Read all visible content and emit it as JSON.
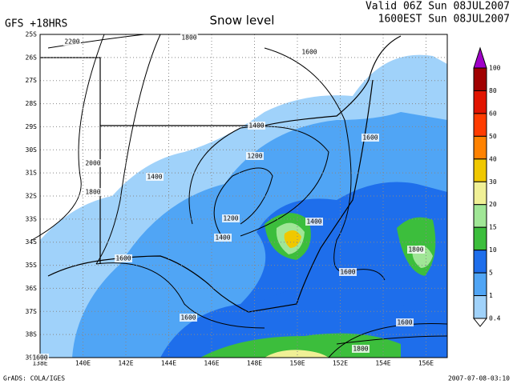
{
  "header": {
    "model": "GFS +18HRS",
    "title": "Snow level",
    "valid": "Valid 06Z Sun 08JUL2007",
    "local": "1600EST Sun 08JUL2007"
  },
  "map": {
    "lat_labels": [
      "25S",
      "26S",
      "27S",
      "28S",
      "29S",
      "30S",
      "31S",
      "32S",
      "33S",
      "34S",
      "35S",
      "36S",
      "37S",
      "38S",
      "39S"
    ],
    "lon_labels": [
      "138E",
      "140E",
      "142E",
      "144E",
      "146E",
      "148E",
      "150E",
      "152E",
      "154E",
      "156E"
    ],
    "contour_labels": [
      "2200",
      "1800",
      "1600",
      "1400",
      "1600",
      "2000",
      "1800",
      "1400",
      "1200",
      "1200",
      "1400",
      "1400",
      "1600",
      "1600",
      "1800",
      "1600",
      "1600",
      "1800",
      "1600"
    ]
  },
  "colorbar": {
    "levels": [
      "100",
      "80",
      "60",
      "50",
      "40",
      "30",
      "20",
      "15",
      "10",
      "5",
      "1",
      "0.4"
    ],
    "colors": [
      "#a000c8",
      "#a00000",
      "#e11400",
      "#ff3c00",
      "#ff8200",
      "#f0c800",
      "#f0f096",
      "#a0e696",
      "#3cbe3c",
      "#1e6eeb",
      "#50a5f5",
      "#a0d2fa",
      "#ffffff"
    ]
  },
  "footer": {
    "left": "GrADS: COLA/IGES",
    "right": "2007-07-08-03:10"
  }
}
